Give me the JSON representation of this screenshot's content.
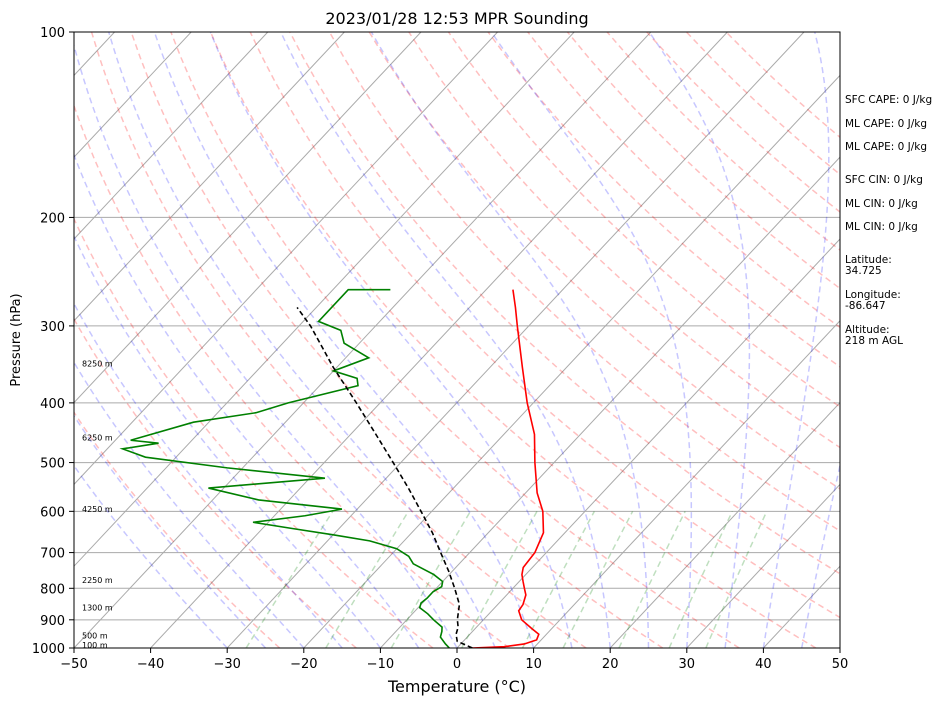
{
  "chart_data": {
    "type": "line",
    "title": "2023/01/28 12:53 MPR Sounding",
    "xlabel": "Temperature (°C)",
    "ylabel": "Pressure (hPa)",
    "xlim": [
      -50,
      50
    ],
    "ylim": [
      1000,
      100
    ],
    "y_scale": "log",
    "x_ticks": [
      -50,
      -40,
      -30,
      -20,
      -10,
      0,
      10,
      20,
      30,
      40,
      50
    ],
    "x_tick_labels": [
      "−50",
      "−40",
      "−30",
      "−20",
      "−10",
      "0",
      "10",
      "20",
      "30",
      "40",
      "50"
    ],
    "y_ticks": [
      1000,
      900,
      800,
      700,
      600,
      500,
      400,
      300,
      200,
      100
    ],
    "y_tick_labels": [
      "1000",
      "900",
      "800",
      "700",
      "600",
      "500",
      "400",
      "300",
      "200",
      "100"
    ],
    "skew_deg_per_decade": 75.3,
    "height_labels": [
      {
        "p": 989,
        "text": "100 m"
      },
      {
        "p": 955,
        "text": "500 m"
      },
      {
        "p": 860,
        "text": "1300 m"
      },
      {
        "p": 775,
        "text": "2250 m"
      },
      {
        "p": 595,
        "text": "4250 m"
      },
      {
        "p": 455,
        "text": "6250 m"
      },
      {
        "p": 345,
        "text": "8250 m"
      }
    ],
    "series": [
      {
        "kind": "temperature",
        "color": "#ff0000",
        "points": [
          [
            1000,
            2.0
          ],
          [
            995,
            6.0
          ],
          [
            985,
            8.3
          ],
          [
            970,
            9.4
          ],
          [
            950,
            9.0
          ],
          [
            930,
            7.4
          ],
          [
            900,
            5.0
          ],
          [
            870,
            3.5
          ],
          [
            850,
            3.3
          ],
          [
            820,
            2.5
          ],
          [
            800,
            1.5
          ],
          [
            780,
            0.5
          ],
          [
            760,
            -0.5
          ],
          [
            740,
            -1.2
          ],
          [
            700,
            -1.5
          ],
          [
            650,
            -2.8
          ],
          [
            600,
            -5.5
          ],
          [
            560,
            -8.5
          ],
          [
            500,
            -12.5
          ],
          [
            450,
            -16.0
          ],
          [
            400,
            -20.8
          ],
          [
            350,
            -25.8
          ],
          [
            300,
            -31.5
          ],
          [
            280,
            -34.0
          ],
          [
            262,
            -36.5
          ]
        ]
      },
      {
        "kind": "dewpoint",
        "color": "#008000",
        "points": [
          [
            1000,
            -1.0
          ],
          [
            985,
            -2.0
          ],
          [
            960,
            -3.5
          ],
          [
            940,
            -4.0
          ],
          [
            925,
            -4.5
          ],
          [
            900,
            -6.5
          ],
          [
            880,
            -8.0
          ],
          [
            860,
            -9.8
          ],
          [
            845,
            -10.2
          ],
          [
            830,
            -10.0
          ],
          [
            810,
            -10.0
          ],
          [
            795,
            -9.5
          ],
          [
            780,
            -10.0
          ],
          [
            760,
            -12.0
          ],
          [
            730,
            -16.0
          ],
          [
            710,
            -17.5
          ],
          [
            690,
            -20.0
          ],
          [
            670,
            -24.5
          ],
          [
            655,
            -30.0
          ],
          [
            640,
            -36.0
          ],
          [
            625,
            -42.0
          ],
          [
            610,
            -36.0
          ],
          [
            595,
            -32.0
          ],
          [
            575,
            -44.0
          ],
          [
            550,
            -52.0
          ],
          [
            530,
            -38.0
          ],
          [
            510,
            -52.0
          ],
          [
            490,
            -64.0
          ],
          [
            475,
            -68.0
          ],
          [
            465,
            -64.0
          ],
          [
            460,
            -68.0
          ],
          [
            430,
            -62.0
          ],
          [
            415,
            -55.0
          ],
          [
            400,
            -52.0
          ],
          [
            375,
            -45.0
          ],
          [
            365,
            -46.0
          ],
          [
            355,
            -50.0
          ],
          [
            338,
            -47.0
          ],
          [
            320,
            -52.0
          ],
          [
            305,
            -54.0
          ],
          [
            295,
            -58.0
          ],
          [
            262,
            -58.0
          ],
          [
            262,
            -52.5
          ]
        ]
      },
      {
        "kind": "parcel",
        "color": "#000000",
        "dashed": true,
        "points": [
          [
            1000,
            2.0
          ],
          [
            975,
            -0.8
          ],
          [
            950,
            -1.8
          ],
          [
            925,
            -2.4
          ],
          [
            900,
            -3.4
          ],
          [
            850,
            -5.0
          ],
          [
            800,
            -7.6
          ],
          [
            750,
            -10.5
          ],
          [
            700,
            -13.8
          ],
          [
            650,
            -17.3
          ],
          [
            600,
            -21.4
          ],
          [
            550,
            -25.9
          ],
          [
            500,
            -31.0
          ],
          [
            450,
            -36.7
          ],
          [
            400,
            -43.1
          ],
          [
            350,
            -50.5
          ],
          [
            300,
            -58.5
          ],
          [
            280,
            -62.5
          ]
        ]
      }
    ]
  },
  "stats": {
    "sfc_cape": "SFC CAPE: 0 J/kg",
    "ml_cape_1": "ML CAPE: 0 J/kg",
    "ml_cape_2": "ML CAPE: 0 J/kg",
    "sfc_cin": "SFC CIN: 0 J/kg",
    "ml_cin_1": "ML CIN: 0 J/kg",
    "ml_cin_2": "ML CIN: 0 J/kg",
    "latitude": "Latitude:\n34.725",
    "longitude": "Longitude:\n-86.647",
    "altitude": "Altitude:\n218 m AGL"
  }
}
